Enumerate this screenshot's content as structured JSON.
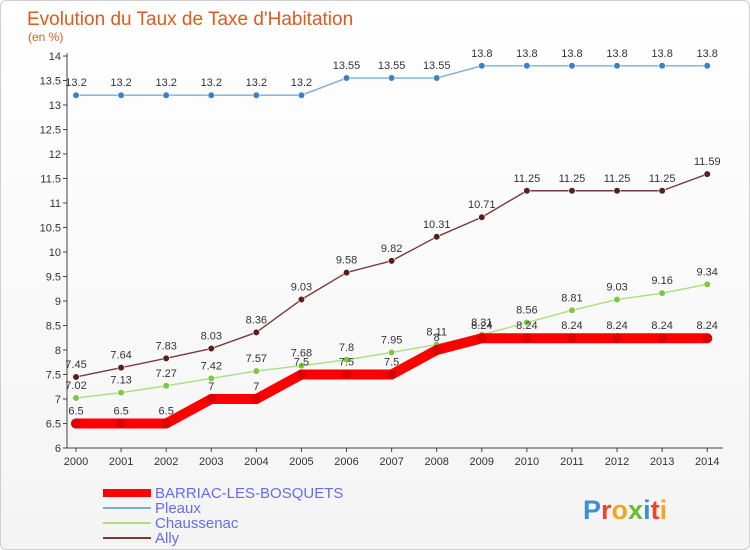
{
  "chart_data": {
    "type": "line",
    "title": "Evolution du Taux de Taxe d'Habitation",
    "subtitle": "(en %)",
    "xlabel": "",
    "ylabel": "",
    "x": [
      2000,
      2001,
      2002,
      2003,
      2004,
      2005,
      2006,
      2007,
      2008,
      2009,
      2010,
      2011,
      2012,
      2013,
      2014
    ],
    "ylim": [
      6,
      14
    ],
    "yticks": [
      6,
      6.5,
      7,
      7.5,
      8,
      8.5,
      9,
      9.5,
      10,
      10.5,
      11,
      11.5,
      12,
      12.5,
      13,
      13.5,
      14
    ],
    "grid": false,
    "legend_position": "bottom-left",
    "series": [
      {
        "name": "BARRIAC-LES-BOSQUETS",
        "color": "#ff0000",
        "marker_color": "#dd0000",
        "values": [
          6.5,
          6.5,
          6.5,
          7,
          7,
          7.5,
          7.5,
          7.5,
          8,
          8.24,
          8.24,
          8.24,
          8.24,
          8.24,
          8.24
        ],
        "labels": [
          "6.5",
          "6.5",
          "6.5",
          "7",
          "7",
          "7.5",
          "7.5",
          "7.5",
          "8",
          "8.24",
          "8.24",
          "8.24",
          "8.24",
          "8.24",
          "8.24"
        ]
      },
      {
        "name": "Pleaux",
        "color": "#7aaed8",
        "marker_color": "#3b82c4",
        "values": [
          13.2,
          13.2,
          13.2,
          13.2,
          13.2,
          13.2,
          13.55,
          13.55,
          13.55,
          13.8,
          13.8,
          13.8,
          13.8,
          13.8,
          13.8
        ],
        "labels": [
          "13.2",
          "13.2",
          "13.2",
          "13.2",
          "13.2",
          "13.2",
          "13.55",
          "13.55",
          "13.55",
          "13.8",
          "13.8",
          "13.8",
          "13.8",
          "13.8",
          "13.8"
        ]
      },
      {
        "name": "Chaussenac",
        "color": "#a8e07a",
        "marker_color": "#7cc840",
        "values": [
          7.02,
          7.13,
          7.27,
          7.42,
          7.57,
          7.68,
          7.8,
          7.95,
          8.11,
          8.31,
          8.56,
          8.81,
          9.03,
          9.16,
          9.34
        ],
        "labels": [
          "7.02",
          "7.13",
          "7.27",
          "7.42",
          "7.57",
          "7.68",
          "7.8",
          "7.95",
          "8.11",
          "8.31",
          "8.56",
          "8.81",
          "9.03",
          "9.16",
          "9.34"
        ]
      },
      {
        "name": "Ally",
        "color": "#7a3a3a",
        "marker_color": "#5a1e1e",
        "values": [
          7.45,
          7.64,
          7.83,
          8.03,
          8.36,
          9.03,
          9.58,
          9.82,
          10.31,
          10.71,
          11.25,
          11.25,
          11.25,
          11.25,
          11.59
        ],
        "labels": [
          "7.45",
          "7.64",
          "7.83",
          "8.03",
          "8.36",
          "9.03",
          "9.58",
          "9.82",
          "10.31",
          "10.71",
          "11.25",
          "11.25",
          "11.25",
          "11.25",
          "11.59"
        ]
      }
    ]
  },
  "logo": {
    "text": "Proxiti",
    "letter_colors": [
      "#3a8fd8",
      "#e8452c",
      "#f2a81d",
      "#6cb82e",
      "#3a8fd8",
      "#e8452c",
      "#f2a81d"
    ]
  }
}
